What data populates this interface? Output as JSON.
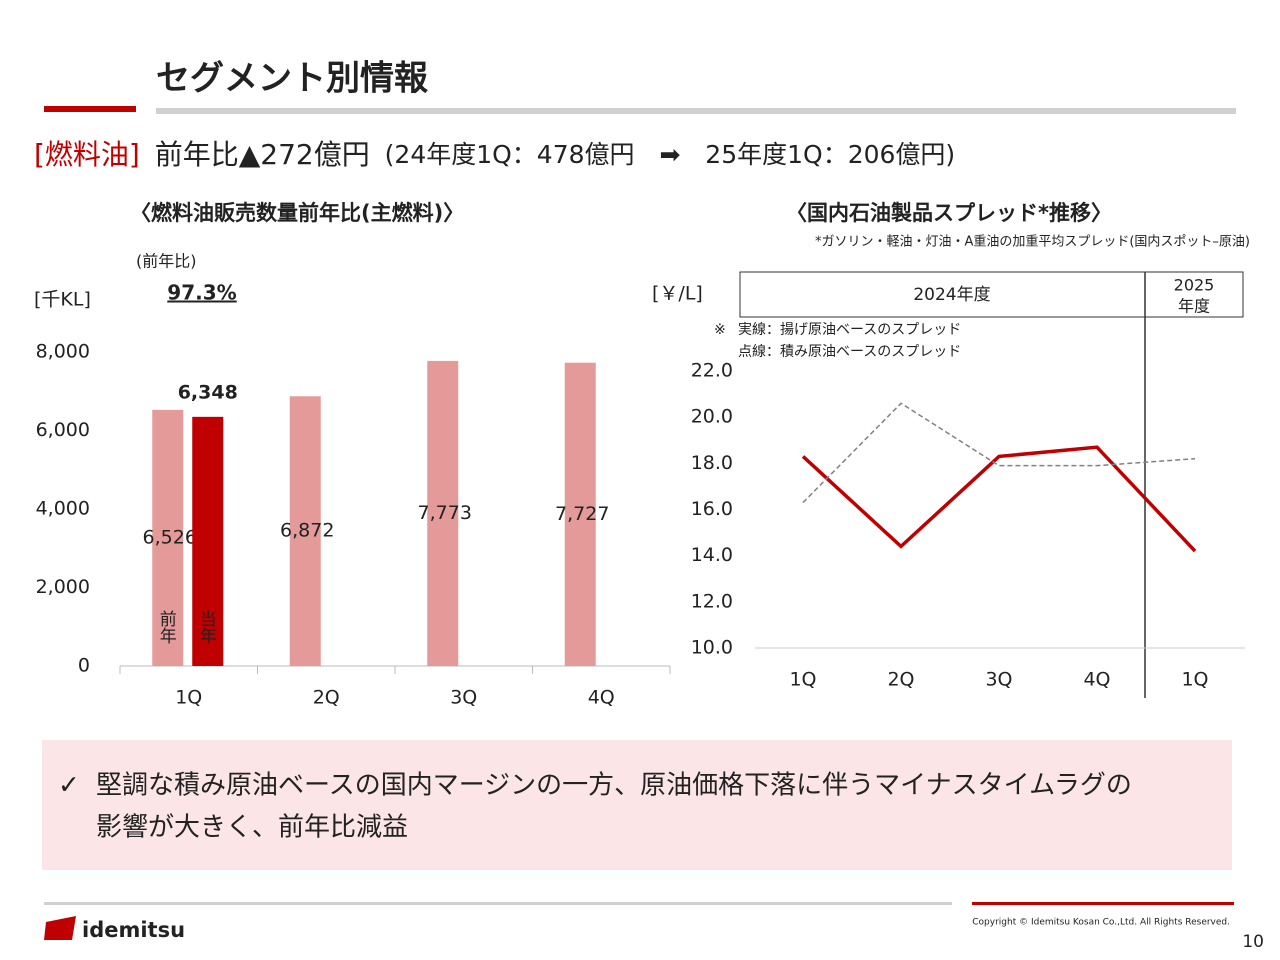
{
  "header": {
    "title": "セグメント別情報"
  },
  "headline": {
    "segment": "[燃料油]",
    "summary": "前年比▲272億円",
    "prev": "(24年度1Q：478億円",
    "arrow": "➡",
    "curr": "25年度1Q：206億円)"
  },
  "chart_data": [
    {
      "type": "bar",
      "title": "〈燃料油販売数量前年比(主燃料)〉",
      "y_label": "[千KL]",
      "annotation": "(前年比)",
      "ratio": "97.3%",
      "categories": [
        "1Q",
        "2Q",
        "3Q",
        "4Q"
      ],
      "series": [
        {
          "name": "前年",
          "color": "#e59a9a",
          "values": [
            6526,
            6872,
            7773,
            7727
          ],
          "value_labels": [
            "6,526",
            "6,872",
            "7,773",
            "7,727"
          ]
        },
        {
          "name": "当年",
          "color": "#c00000",
          "values": [
            6348,
            null,
            null,
            null
          ],
          "value_labels": [
            "6,348",
            null,
            null,
            null
          ]
        }
      ],
      "ylim": [
        0,
        8000
      ],
      "yticks": [
        0,
        {
          "value": 2000,
          "label": "2,000"
        },
        {
          "value": 4000,
          "label": "4,000"
        },
        {
          "value": 6000,
          "label": "6,000"
        },
        {
          "value": 8000,
          "label": "8,000"
        }
      ]
    },
    {
      "type": "line",
      "title": "〈国内石油製品スプレッド*推移〉",
      "subtitle": "*ガソリン・軽油・灯油・A重油の加重平均スプレッド(国内スポット–原油)",
      "y_label": "[￥/L]",
      "note_mark": "※",
      "periods": [
        {
          "label": "2024年度"
        },
        {
          "label_lines": [
            "2025",
            "年度"
          ]
        }
      ],
      "categories": [
        "1Q",
        "2Q",
        "3Q",
        "4Q",
        "1Q"
      ],
      "series": [
        {
          "name": "実線：揚げ原油ベースのスプレッド",
          "color": "#c00000",
          "dashed": false,
          "values": [
            18.3,
            14.4,
            18.3,
            18.7,
            14.2
          ]
        },
        {
          "name": "点線：積み原油ベースのスプレッド",
          "color": "#808080",
          "dashed": true,
          "values": [
            16.3,
            20.6,
            17.9,
            17.9,
            18.2
          ]
        }
      ],
      "ylim": [
        10,
        22
      ],
      "yticks": [
        {
          "value": 10,
          "label": "10.0"
        },
        {
          "value": 12,
          "label": "12.0"
        },
        {
          "value": 14,
          "label": "14.0"
        },
        {
          "value": 16,
          "label": "16.0"
        },
        {
          "value": 18,
          "label": "18.0"
        },
        {
          "value": 20,
          "label": "20.0"
        },
        {
          "value": 22,
          "label": "22.0"
        }
      ]
    }
  ],
  "bullet": {
    "mark": "✓",
    "lines": [
      "堅調な積み原油ベースの国内マージンの一方、原油価格下落に伴うマイナスタイムラグの",
      "影響が大きく、前年比減益"
    ]
  },
  "footer": {
    "brand": "idemitsu",
    "copyright": "Copyright © Idemitsu Kosan Co.,Ltd.  All Rights Reserved.",
    "page": "10"
  }
}
